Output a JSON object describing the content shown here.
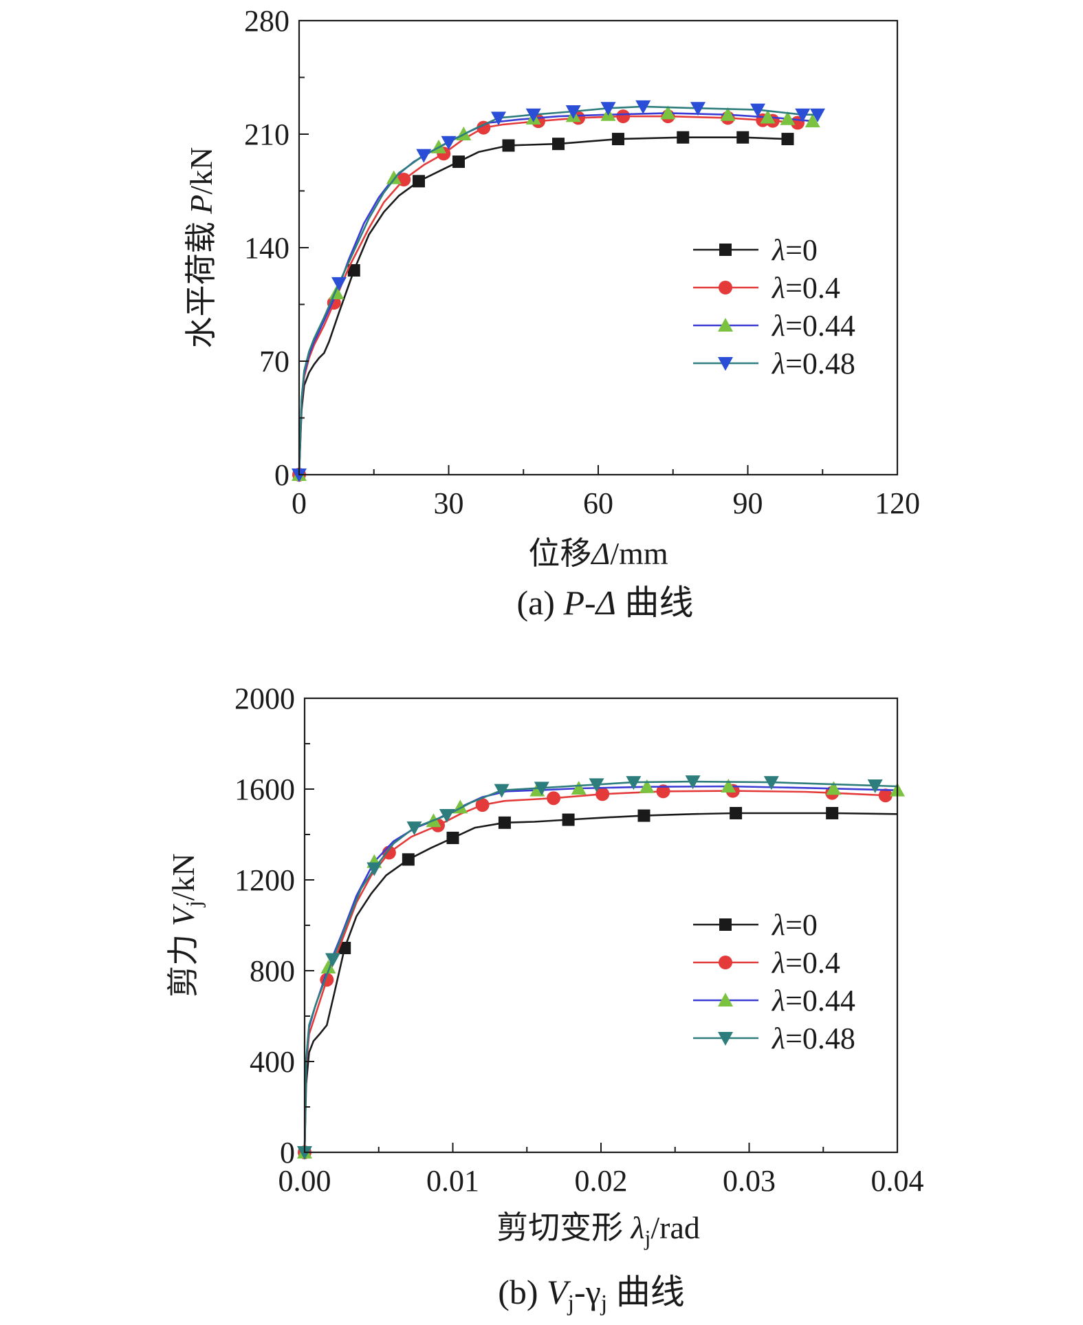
{
  "chart_data": [
    {
      "type": "line",
      "caption": {
        "prefix": "(a) ",
        "var": "P-Δ",
        "suffix": " 曲线"
      },
      "ylabel": {
        "main": "水平荷载 ",
        "var": "P",
        "unit": "/kN"
      },
      "xlabel": {
        "main": "位移",
        "var": "Δ",
        "unit": "/mm"
      },
      "xlim": [
        0,
        120
      ],
      "ylim": [
        0,
        280
      ],
      "xticks": [
        "0",
        "30",
        "60",
        "90",
        "120"
      ],
      "yticks": [
        "0",
        "70",
        "140",
        "210",
        "280"
      ],
      "legend_position": "right",
      "series": [
        {
          "name": "λ=0",
          "color": "#1a1a1a",
          "marker": "square",
          "x": [
            0,
            0.5,
            1,
            2,
            3,
            4,
            5,
            6,
            8,
            11,
            14,
            17,
            20,
            24,
            28,
            32,
            36,
            42,
            52,
            64,
            77,
            89,
            98
          ],
          "y": [
            0,
            40,
            55,
            63,
            68,
            72,
            75,
            82,
            100,
            126,
            148,
            162,
            172,
            181,
            187,
            193,
            199,
            203,
            204,
            207,
            208,
            208,
            207
          ],
          "markers_x": [
            0,
            11,
            24,
            32,
            42,
            52,
            64,
            77,
            89,
            98
          ]
        },
        {
          "name": "λ=0.4",
          "color": "#e53a3a",
          "marker": "circle",
          "x": [
            0,
            0.5,
            1,
            2,
            3,
            5,
            7,
            10,
            14,
            17,
            21,
            25,
            29,
            33,
            37,
            41,
            48,
            56,
            65,
            74,
            86,
            96,
            100
          ],
          "y": [
            0,
            45,
            60,
            72,
            80,
            92,
            106,
            128,
            152,
            168,
            182,
            191,
            198,
            207,
            214,
            216,
            218,
            220,
            221,
            221,
            220,
            218,
            217
          ],
          "markers_x": [
            0,
            7,
            21,
            29,
            37,
            48,
            56,
            65,
            74,
            86,
            93,
            95,
            100
          ]
        },
        {
          "name": "λ=0.44",
          "color": "#3a3ad4",
          "marker": "triangle-up",
          "x": [
            0,
            0.5,
            1,
            2,
            3,
            5,
            7.5,
            10,
            13,
            16,
            19,
            23,
            28,
            33,
            38,
            44,
            52,
            62,
            74,
            86,
            96,
            103
          ],
          "y": [
            0,
            46,
            62,
            74,
            82,
            95,
            112,
            133,
            155,
            171,
            183,
            193,
            202,
            210,
            217,
            219,
            221,
            222,
            223,
            222,
            220,
            218
          ],
          "markers_x": [
            0,
            7.5,
            19,
            28,
            33,
            47,
            55,
            62,
            74,
            86,
            94,
            98,
            103
          ],
          "marker_color": "#7cc241"
        },
        {
          "name": "λ=0.48",
          "color": "#2e7d7d",
          "marker": "triangle-down",
          "x": [
            0,
            0.5,
            1,
            2,
            3,
            5,
            8,
            11,
            14,
            17,
            20,
            25,
            30,
            35,
            40,
            47,
            55,
            62,
            69,
            80,
            92,
            101,
            104
          ],
          "y": [
            0,
            47,
            64,
            76,
            84,
            97,
            118,
            138,
            158,
            174,
            186,
            197,
            205,
            213,
            220,
            222,
            224,
            226,
            227,
            226,
            225,
            222,
            222
          ],
          "markers_x": [
            0,
            8,
            25,
            30,
            40,
            47,
            55,
            62,
            69,
            80,
            92,
            101,
            104
          ],
          "marker_color": "#2a4fd6"
        }
      ]
    },
    {
      "type": "line",
      "caption": {
        "prefix": "(b) ",
        "var": "V",
        "sub": "j",
        "mid": "-γ",
        "sub2": "j",
        "suffix": " 曲线"
      },
      "ylabel": {
        "main": "剪力 ",
        "var": "V",
        "sub": "j",
        "unit": "/kN"
      },
      "xlabel": {
        "main": "剪切变形 ",
        "var": "λ",
        "sub": "j",
        "unit": "/rad"
      },
      "xlim": [
        0,
        0.04
      ],
      "ylim": [
        0,
        2000
      ],
      "xticks": [
        "0.00",
        "0.01",
        "0.02",
        "0.03",
        "0.04"
      ],
      "yticks": [
        "0",
        "400",
        "800",
        "1200",
        "1600",
        "2000"
      ],
      "legend_position": "right",
      "series": [
        {
          "name": "λ=0",
          "color": "#1a1a1a",
          "marker": "square",
          "x": [
            0,
            0.0001,
            0.0003,
            0.0006,
            0.001,
            0.0015,
            0.002,
            0.0027,
            0.0035,
            0.0045,
            0.0055,
            0.007,
            0.0085,
            0.01,
            0.0115,
            0.0135,
            0.0155,
            0.0178,
            0.0203,
            0.0229,
            0.0262,
            0.0291,
            0.0324,
            0.0356,
            0.04
          ],
          "y": [
            0,
            300,
            440,
            490,
            520,
            560,
            700,
            900,
            1040,
            1140,
            1220,
            1290,
            1340,
            1385,
            1430,
            1452,
            1456,
            1465,
            1475,
            1483,
            1490,
            1494,
            1494,
            1494,
            1490
          ],
          "markers_x": [
            0,
            0.0027,
            0.007,
            0.01,
            0.0135,
            0.0178,
            0.0229,
            0.0291,
            0.0356
          ]
        },
        {
          "name": "λ=0.4",
          "color": "#e53a3a",
          "marker": "circle",
          "x": [
            0,
            0.0001,
            0.0003,
            0.0007,
            0.0015,
            0.0025,
            0.0035,
            0.0045,
            0.0057,
            0.0072,
            0.009,
            0.0105,
            0.012,
            0.0135,
            0.0168,
            0.0201,
            0.0242,
            0.0289,
            0.0338,
            0.0356,
            0.0392
          ],
          "y": [
            0,
            380,
            520,
            600,
            760,
            930,
            1100,
            1220,
            1320,
            1390,
            1440,
            1490,
            1530,
            1548,
            1560,
            1578,
            1590,
            1592,
            1588,
            1583,
            1572
          ],
          "markers_x": [
            0,
            0.0015,
            0.0057,
            0.009,
            0.012,
            0.0168,
            0.0201,
            0.0242,
            0.0289,
            0.0356,
            0.0392
          ]
        },
        {
          "name": "λ=0.44",
          "color": "#3a3ad4",
          "marker": "triangle-up",
          "x": [
            0,
            0.0001,
            0.0003,
            0.0007,
            0.0016,
            0.0025,
            0.0035,
            0.0047,
            0.006,
            0.0075,
            0.0087,
            0.0105,
            0.012,
            0.0136,
            0.0157,
            0.0185,
            0.0231,
            0.0286,
            0.0338,
            0.0357,
            0.04
          ],
          "y": [
            0,
            400,
            550,
            640,
            815,
            960,
            1130,
            1280,
            1370,
            1430,
            1460,
            1520,
            1565,
            1590,
            1595,
            1603,
            1610,
            1612,
            1605,
            1602,
            1595
          ],
          "markers_x": [
            0,
            0.0016,
            0.0047,
            0.0087,
            0.0105,
            0.0157,
            0.0185,
            0.0231,
            0.0286,
            0.0357,
            0.04
          ],
          "marker_color": "#7cc241"
        },
        {
          "name": "λ=0.48",
          "color": "#2e7d7d",
          "marker": "triangle-down",
          "x": [
            0,
            0.0001,
            0.0003,
            0.0008,
            0.0019,
            0.0028,
            0.0038,
            0.0047,
            0.006,
            0.0074,
            0.0096,
            0.0112,
            0.0133,
            0.016,
            0.0197,
            0.0222,
            0.0262,
            0.0315,
            0.0352,
            0.0385,
            0.04
          ],
          "y": [
            0,
            410,
            560,
            660,
            850,
            1000,
            1160,
            1250,
            1360,
            1430,
            1485,
            1540,
            1595,
            1605,
            1620,
            1630,
            1633,
            1630,
            1622,
            1615,
            1612
          ],
          "markers_x": [
            0,
            0.0019,
            0.0047,
            0.0074,
            0.0096,
            0.0133,
            0.016,
            0.0197,
            0.0222,
            0.0262,
            0.0315,
            0.0385
          ]
        }
      ]
    }
  ]
}
